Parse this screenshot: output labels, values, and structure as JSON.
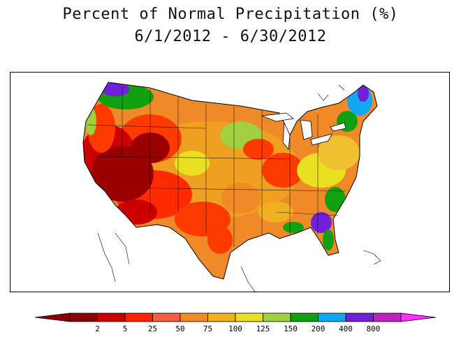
{
  "title": {
    "line1": "Percent of Normal Precipitation (%)",
    "line2": "6/1/2012 - 6/30/2012"
  },
  "legend": {
    "ticks": [
      "2",
      "5",
      "25",
      "50",
      "75",
      "100",
      "125",
      "150",
      "200",
      "400",
      "800"
    ],
    "colors": [
      "#8b0000",
      "#cc0000",
      "#ff2200",
      "#f06040",
      "#f08a28",
      "#f0b020",
      "#e8e020",
      "#a0d040",
      "#10a010",
      "#10a8f0",
      "#7020d8",
      "#c020c0"
    ],
    "tail_left_color": "#8b0000",
    "tail_right_color": "#ff30ff"
  },
  "map": {
    "background": "#ffffff",
    "border_color": "#000000"
  }
}
